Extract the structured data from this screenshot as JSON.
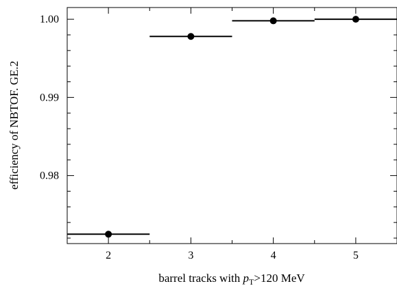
{
  "chart_data": {
    "type": "scatter",
    "xlabel_prefix": "barrel tracks with ",
    "xlabel_var": "p",
    "xlabel_sub": "T",
    "xlabel_suffix": ">120 MeV",
    "ylabel": "efficiency of NBTOF. GE.2",
    "xlim": [
      1.5,
      5.5
    ],
    "ylim": [
      0.9713,
      1.0015
    ],
    "xticks": [
      2,
      3,
      4,
      5
    ],
    "xtick_labels": [
      "2",
      "3",
      "4",
      "5"
    ],
    "yticks": [
      0.98,
      0.99,
      1.0
    ],
    "ytick_labels": [
      "0.98",
      "0.99",
      "1.00"
    ],
    "grid": false,
    "points": [
      {
        "x": 2,
        "y": 0.9725,
        "xerr": 0.5
      },
      {
        "x": 3,
        "y": 0.9978,
        "xerr": 0.5
      },
      {
        "x": 4,
        "y": 0.9998,
        "xerr": 0.5
      },
      {
        "x": 5,
        "y": 1.0,
        "xerr": 0.5
      }
    ]
  }
}
